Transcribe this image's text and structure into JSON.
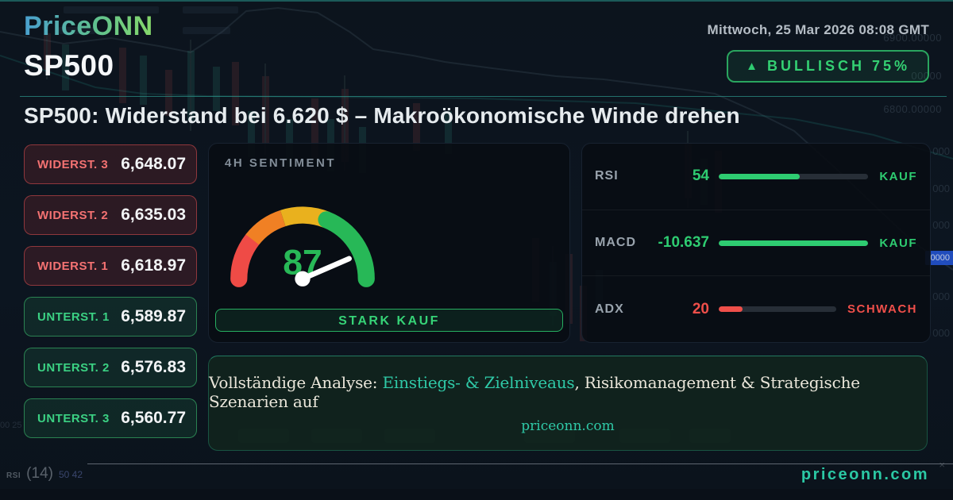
{
  "header": {
    "logo_text": "PriceONN",
    "datetime": "Mittwoch, 25 Mar 2026 08:08 GMT",
    "symbol": "SP500",
    "badge_icon": "▲",
    "badge_label": "BULLISCH 75%"
  },
  "headline": "SP500: Widerstand bei 6.620 $ – Makroökonomische Winde drehen",
  "levels": [
    {
      "label": "WIDERST. 3",
      "value": "6,648.07",
      "type": "resistance"
    },
    {
      "label": "WIDERST. 2",
      "value": "6,635.03",
      "type": "resistance"
    },
    {
      "label": "WIDERST. 1",
      "value": "6,618.97",
      "type": "resistance"
    },
    {
      "label": "UNTERST. 1",
      "value": "6,589.87",
      "type": "support"
    },
    {
      "label": "UNTERST. 2",
      "value": "6,576.83",
      "type": "support"
    },
    {
      "label": "UNTERST. 3",
      "value": "6,560.77",
      "type": "support"
    }
  ],
  "sentiment": {
    "title": "4H SENTIMENT",
    "score": 87,
    "score_max": 100,
    "action_label": "STARK KAUF"
  },
  "indicators": {
    "rows": [
      {
        "label": "RSI",
        "value": "54",
        "signal": "KAUF",
        "fill_pct": 54,
        "color": "#2ecc71"
      },
      {
        "label": "MACD",
        "value": "-10.637",
        "signal": "KAUF",
        "fill_pct": 100,
        "color": "#2ecc71"
      },
      {
        "label": "ADX",
        "value": "20",
        "signal": "SCHWACH",
        "fill_pct": 20,
        "color": "#ef4f4a"
      }
    ]
  },
  "cta": {
    "prefix": "Vollständige Analyse: ",
    "highlight": "Einstiegs- & Zielniveaus",
    "suffix": ", Risikomanagement & Strategische Szenarien auf",
    "site": "priceonn.com"
  },
  "footer": {
    "site": "priceonn.com"
  },
  "background": {
    "axis_label_1": "6900.00000",
    "axis_label_2": "6800.00000",
    "axis_fragment": "00000",
    "edge_fragments": [
      "000",
      "000",
      "000",
      "000",
      "000"
    ],
    "price_tag": "0000",
    "left_fragment": "00 25",
    "rsi_name": "RSI",
    "rsi_period": "(14)",
    "rsi_values": "50 42",
    "close_glyph": "×"
  },
  "colors": {
    "bullish_green": "#2ecc71",
    "bearish_red": "#ef4f4a",
    "teal_accent": "#2fc9a7",
    "gauge_red": "#ef4b46",
    "gauge_orange": "#f08024",
    "gauge_amber": "#e9b11e",
    "gauge_green": "#27b857"
  }
}
